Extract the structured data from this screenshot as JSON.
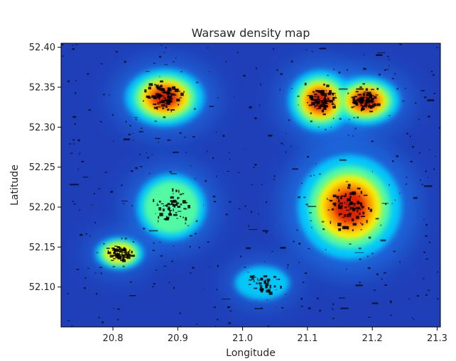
{
  "chart_data": {
    "type": "heatmap",
    "title": "Warsaw density map",
    "xlabel": "Longitude",
    "ylabel": "Latitude",
    "xlim": [
      20.72,
      21.305
    ],
    "ylim": [
      52.05,
      52.405
    ],
    "x_ticks": [
      20.8,
      20.9,
      21.0,
      21.1,
      21.2,
      21.3
    ],
    "x_tick_labels": [
      "20.8",
      "20.9",
      "21.0",
      "21.1",
      "21.2",
      "21.3"
    ],
    "y_ticks": [
      52.1,
      52.15,
      52.2,
      52.25,
      52.3,
      52.35,
      52.4
    ],
    "y_tick_labels": [
      "52.10",
      "52.15",
      "52.20",
      "52.25",
      "52.30",
      "52.35",
      "52.40"
    ],
    "grid": false,
    "colormap": "jet",
    "background_color": "#1f3fb8",
    "hotspots": [
      {
        "lon": 20.88,
        "lat": 52.337,
        "intensity": 1.0,
        "spread_lon": 0.042,
        "spread_lat": 0.025
      },
      {
        "lon": 21.12,
        "lat": 52.333,
        "intensity": 0.95,
        "spread_lon": 0.035,
        "spread_lat": 0.027
      },
      {
        "lon": 21.19,
        "lat": 52.333,
        "intensity": 0.9,
        "spread_lon": 0.038,
        "spread_lat": 0.022
      },
      {
        "lon": 21.165,
        "lat": 52.2,
        "intensity": 1.0,
        "spread_lon": 0.055,
        "spread_lat": 0.045
      },
      {
        "lon": 20.89,
        "lat": 52.2,
        "intensity": 0.55,
        "spread_lon": 0.045,
        "spread_lat": 0.035
      },
      {
        "lon": 20.81,
        "lat": 52.142,
        "intensity": 0.65,
        "spread_lon": 0.03,
        "spread_lat": 0.016
      },
      {
        "lon": 21.03,
        "lat": 52.105,
        "intensity": 0.3,
        "spread_lon": 0.04,
        "spread_lat": 0.02
      }
    ]
  }
}
